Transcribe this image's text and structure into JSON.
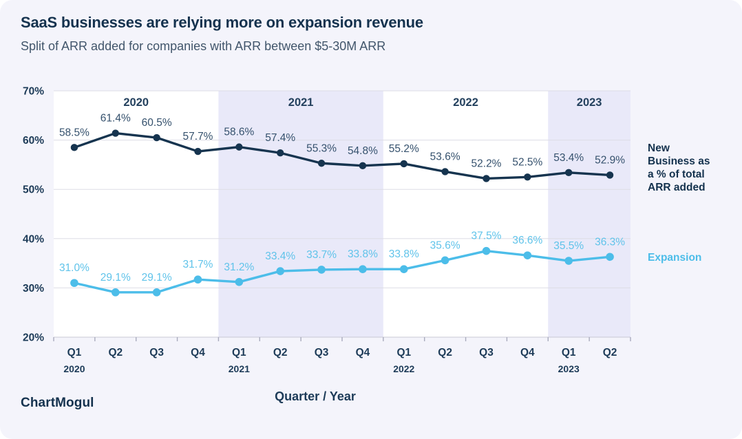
{
  "header": {
    "title": "SaaS businesses are relying more on expansion revenue",
    "subtitle": "Split of ARR added for companies with ARR between $5-30M ARR"
  },
  "branding": {
    "logo": "ChartMogul"
  },
  "colors": {
    "card_background": "#f4f4fb",
    "band_highlight": "#e9e9f9",
    "band_plain": "#ffffff",
    "navy": "#14324e",
    "gridline": "#dddde6",
    "axis_line": "#c8c8d4"
  },
  "chart_data": {
    "type": "line",
    "x_axis_label": "Quarter / Year",
    "quarters": [
      "Q1",
      "Q2",
      "Q3",
      "Q4",
      "Q1",
      "Q2",
      "Q3",
      "Q4",
      "Q1",
      "Q2",
      "Q3",
      "Q4",
      "Q1",
      "Q2"
    ],
    "year_groups": [
      {
        "year": "2020",
        "quarters": 4,
        "band": "#ffffff"
      },
      {
        "year": "2021",
        "quarters": 4,
        "band": "#e9e9f9"
      },
      {
        "year": "2022",
        "quarters": 4,
        "band": "#ffffff"
      },
      {
        "year": "2023",
        "quarters": 2,
        "band": "#e9e9f9"
      }
    ],
    "ylim": [
      20,
      70
    ],
    "y_ticks": [
      "70%",
      "60%",
      "50%",
      "40%",
      "30%",
      "20%"
    ],
    "grid": true,
    "legend_position": "right",
    "series": [
      {
        "name": "New Business as a % of total ARR added",
        "color": "#16344f",
        "label_color": "#35516d",
        "values": [
          58.5,
          61.4,
          60.5,
          57.7,
          58.6,
          57.4,
          55.3,
          54.8,
          55.2,
          53.6,
          52.2,
          52.5,
          53.4,
          52.9
        ]
      },
      {
        "name": "Expansion",
        "color": "#4cbde9",
        "label_color": "#5fc3ea",
        "values": [
          31.0,
          29.1,
          29.1,
          31.7,
          31.2,
          33.4,
          33.7,
          33.8,
          33.8,
          35.6,
          37.5,
          36.6,
          35.5,
          36.3
        ]
      }
    ]
  }
}
